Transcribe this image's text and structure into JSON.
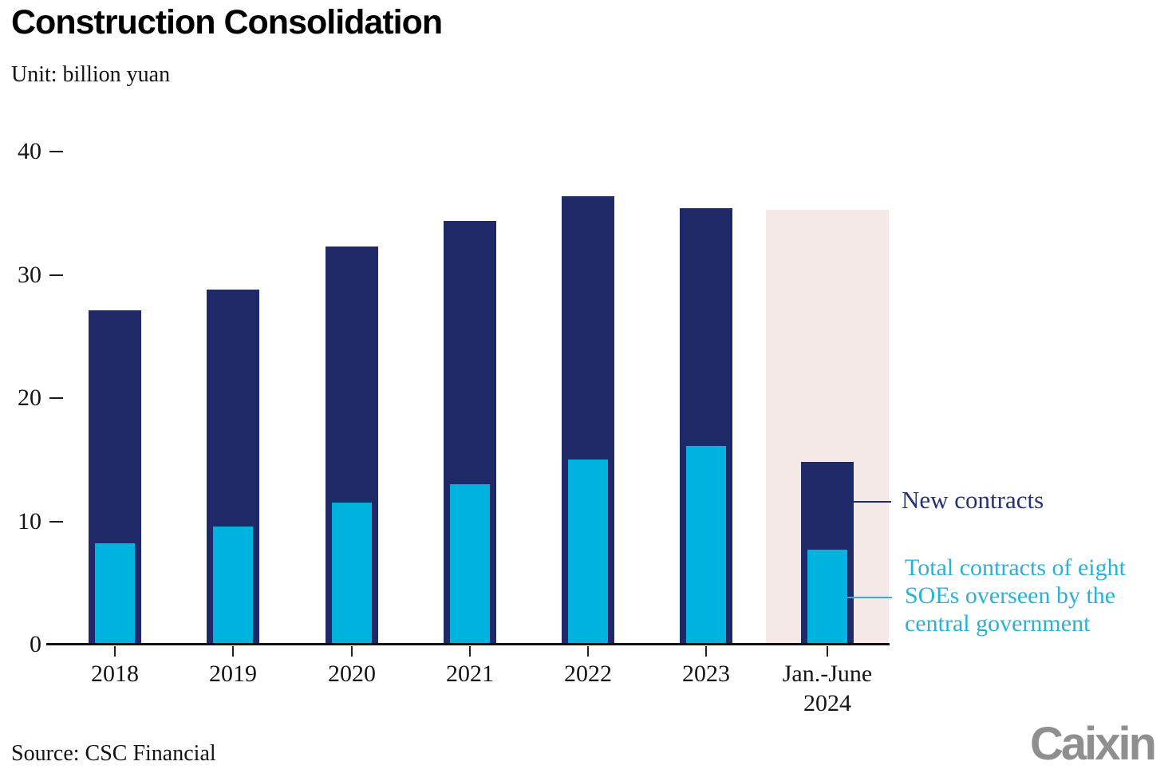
{
  "header": {
    "title": "Construction Consolidation",
    "unit_label": "Unit: billion yuan"
  },
  "legend": {
    "new_contracts_label": "New contracts",
    "soe_label_lines": [
      "Total contracts of eight",
      "SOEs overseen by the",
      "central government"
    ]
  },
  "footer": {
    "source": "Source: CSC Financial",
    "brand": "Caixin"
  },
  "colors": {
    "navy_bar": "#202968",
    "cyan_bar": "#00b3df",
    "navy_text": "#253273",
    "cyan_text": "#29b2d6",
    "highlight": "#f4e9e6",
    "axis": "#101010",
    "brand_gray": "#8f8f8f"
  },
  "chart_data": {
    "type": "bar",
    "title": "Construction Consolidation",
    "unit": "billion yuan",
    "categories": [
      "2018",
      "2019",
      "2020",
      "2021",
      "2022",
      "2023",
      "Jan.-June 2024"
    ],
    "categories_display": [
      [
        "2018"
      ],
      [
        "2019"
      ],
      [
        "2020"
      ],
      [
        "2021"
      ],
      [
        "2022"
      ],
      [
        "2023"
      ],
      [
        "Jan.-June",
        "2024"
      ]
    ],
    "series": [
      {
        "name": "New contracts",
        "color": "#202968",
        "values": [
          27.1,
          28.8,
          32.3,
          34.4,
          36.4,
          35.4,
          14.8
        ]
      },
      {
        "name": "Total contracts of eight SOEs overseen by the central government",
        "color": "#00b3df",
        "values": [
          8.2,
          9.6,
          11.5,
          13.0,
          15.0,
          16.1,
          7.7
        ]
      }
    ],
    "bar_style": "nested",
    "ylim": [
      0,
      40
    ],
    "yticks": [
      0,
      10,
      20,
      30,
      40
    ],
    "grid": false,
    "legend_position": "right",
    "highlight_region": {
      "category": "Jan.-June 2024",
      "top_value": 35.3,
      "color": "#f4e9e6"
    }
  }
}
